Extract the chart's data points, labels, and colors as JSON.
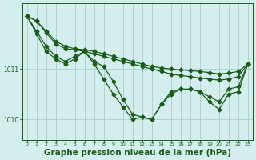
{
  "background_color": "#d4eeee",
  "line_color": "#1a5c1a",
  "grid_color": "#a8cece",
  "xlabel": "Graphe pression niveau de la mer (hPa)",
  "xlabel_fontsize": 7.5,
  "ylim": [
    1009.6,
    1012.3
  ],
  "xlim": [
    -0.5,
    23.5
  ],
  "yticks": [
    1010,
    1011
  ],
  "xticks": [
    0,
    1,
    2,
    3,
    4,
    5,
    6,
    7,
    8,
    9,
    10,
    11,
    12,
    13,
    14,
    15,
    16,
    17,
    18,
    19,
    20,
    21,
    22,
    23
  ],
  "series": [
    {
      "x": [
        0,
        1,
        2,
        3,
        4,
        5,
        6,
        7,
        8,
        9,
        10,
        11,
        12,
        13,
        14,
        15,
        16,
        17,
        18,
        19,
        20,
        21,
        22,
        23
      ],
      "y": [
        1012.05,
        1011.95,
        1011.75,
        1011.55,
        1011.45,
        1011.4,
        1011.38,
        1011.35,
        1011.3,
        1011.25,
        1011.2,
        1011.15,
        1011.1,
        1011.05,
        1011.02,
        1011.0,
        1010.98,
        1010.97,
        1010.95,
        1010.93,
        1010.9,
        1010.92,
        1010.95,
        1011.1
      ],
      "marker": "D",
      "markersize": 2.5,
      "linewidth": 0.9
    },
    {
      "x": [
        0,
        1,
        2,
        3,
        4,
        5,
        6,
        7,
        8,
        9,
        10,
        11,
        12,
        13,
        14,
        15,
        16,
        17,
        18,
        19,
        20,
        21,
        22,
        23
      ],
      "y": [
        1012.05,
        1011.95,
        1011.72,
        1011.5,
        1011.4,
        1011.38,
        1011.35,
        1011.3,
        1011.25,
        1011.2,
        1011.15,
        1011.1,
        1011.05,
        1011.0,
        1010.95,
        1010.9,
        1010.87,
        1010.85,
        1010.82,
        1010.8,
        1010.78,
        1010.8,
        1010.85,
        1011.1
      ],
      "marker": "D",
      "markersize": 2.5,
      "linewidth": 0.9
    },
    {
      "x": [
        0,
        1,
        2,
        3,
        4,
        5,
        6,
        7,
        8,
        9,
        10,
        11,
        12,
        13,
        14,
        15,
        16,
        17,
        18,
        19,
        20,
        21,
        22,
        23
      ],
      "y": [
        1012.05,
        1011.75,
        1011.45,
        1011.25,
        1011.15,
        1011.25,
        1011.35,
        1011.15,
        1011.05,
        1010.75,
        1010.4,
        1010.1,
        1010.05,
        1010.0,
        1010.3,
        1010.55,
        1010.6,
        1010.6,
        1010.55,
        1010.45,
        1010.35,
        1010.6,
        1010.65,
        1011.1
      ],
      "marker": "D",
      "markersize": 2.5,
      "linewidth": 0.9
    },
    {
      "x": [
        0,
        1,
        2,
        3,
        4,
        5,
        6,
        7,
        8,
        9,
        10,
        11,
        12,
        13,
        14,
        15,
        16,
        17,
        18,
        19,
        20,
        21,
        22,
        23
      ],
      "y": [
        1012.05,
        1011.7,
        1011.35,
        1011.2,
        1011.1,
        1011.2,
        1011.35,
        1011.1,
        1010.8,
        1010.5,
        1010.25,
        1010.0,
        1010.05,
        1010.0,
        1010.3,
        1010.5,
        1010.6,
        1010.6,
        1010.55,
        1010.35,
        1010.2,
        1010.5,
        1010.55,
        1011.1
      ],
      "marker": "D",
      "markersize": 2.5,
      "linewidth": 0.9
    }
  ]
}
